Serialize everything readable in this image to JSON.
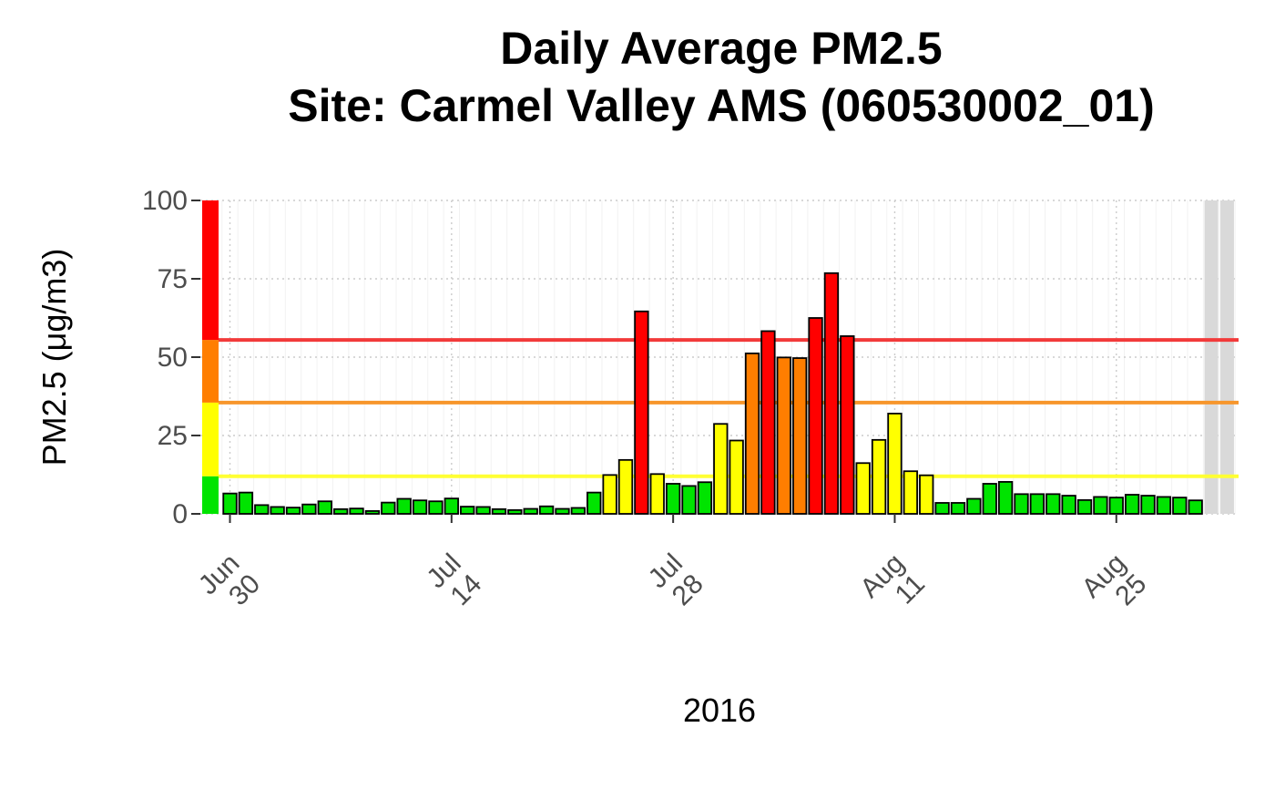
{
  "chart_data": {
    "type": "bar",
    "title": "Daily Average PM2.5",
    "subtitle": "Site: Carmel Valley AMS (060530002_01)",
    "xlabel": "2016",
    "ylabel": "PM2.5 (μg/m3)",
    "ylim": [
      0,
      100
    ],
    "yticks": [
      0,
      25,
      50,
      75,
      100
    ],
    "grid": true,
    "x_start": "2016-06-30",
    "x_ticks": [
      {
        "date": "2016-06-30",
        "line1": "Jun",
        "line2": "30"
      },
      {
        "date": "2016-07-14",
        "line1": "Jul",
        "line2": "14"
      },
      {
        "date": "2016-07-28",
        "line1": "Jul",
        "line2": "28"
      },
      {
        "date": "2016-08-11",
        "line1": "Aug",
        "line2": "11"
      },
      {
        "date": "2016-08-25",
        "line1": "Aug",
        "line2": "25"
      }
    ],
    "values": [
      6.5,
      6.8,
      2.8,
      2.2,
      2.0,
      3.0,
      4.0,
      1.5,
      1.7,
      0.9,
      3.6,
      4.8,
      4.3,
      4.0,
      4.9,
      2.3,
      2.2,
      1.5,
      1.2,
      1.6,
      2.4,
      1.6,
      1.9,
      6.8,
      12.4,
      17.2,
      64.6,
      12.7,
      9.6,
      8.9,
      10.1,
      28.7,
      23.4,
      51.2,
      58.3,
      49.9,
      49.7,
      62.5,
      76.8,
      56.7,
      16.2,
      23.6,
      32.0,
      13.6,
      12.3,
      3.5,
      3.5,
      4.8,
      9.6,
      10.2,
      6.3,
      6.3,
      6.3,
      5.8,
      4.4,
      5.4,
      5.2,
      6.1,
      5.8,
      5.4,
      5.2,
      4.3
    ],
    "missing_days": 2,
    "aqi_levels": [
      {
        "min": 0,
        "max": 12,
        "color": "#00e400"
      },
      {
        "min": 12,
        "max": 35.5,
        "color": "#ffff00"
      },
      {
        "min": 35.5,
        "max": 55.5,
        "color": "#ff7e00"
      },
      {
        "min": 55.5,
        "max": 100,
        "color": "#ff0000"
      }
    ],
    "threshold_lines": [
      {
        "value": 12,
        "color": "#ffff33"
      },
      {
        "value": 35.5,
        "color": "#f7962b"
      },
      {
        "value": 55.5,
        "color": "#f23a3a"
      }
    ],
    "missing_color": "#d9d9d9"
  }
}
